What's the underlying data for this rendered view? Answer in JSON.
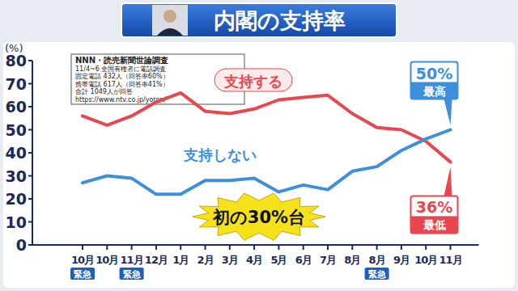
{
  "chart_data": {
    "type": "line",
    "title": "内閣の支持率",
    "y_label": "(%)",
    "categories": [
      "10月",
      "10月",
      "11月",
      "12月",
      "1月",
      "2月",
      "3月",
      "4月",
      "5月",
      "6月",
      "7月",
      "8月",
      "8月",
      "9月",
      "10月",
      "11月"
    ],
    "category_notes": [
      "緊急",
      null,
      "緊急",
      null,
      null,
      null,
      null,
      null,
      null,
      null,
      null,
      null,
      "緊急",
      null,
      null,
      null
    ],
    "source": [
      "NNN・読売新聞世論調査",
      "11/4~6 全国有権者に電話調査",
      "固定電話 432人（回答率60%）",
      "携帯電話 617人（回答率41%）",
      "合計 1049人が回答",
      "https://www.ntv.co.jp/yoron/"
    ],
    "series": [
      {
        "name": "支持する",
        "color": "#e8474f",
        "values": [
          56,
          52,
          56,
          62,
          66,
          58,
          57,
          59,
          63,
          64,
          65,
          57,
          51,
          50,
          45,
          36
        ],
        "value_labels": [
          null,
          null,
          null,
          null,
          null,
          null,
          null,
          null,
          null,
          null,
          null,
          null,
          null,
          null,
          null,
          "36%"
        ]
      },
      {
        "name": "支持しない",
        "color": "#3d8fde",
        "values": [
          27,
          30,
          29,
          22,
          22,
          28,
          28,
          29,
          23,
          26,
          24,
          32,
          34,
          41,
          46,
          50
        ],
        "value_labels": [
          null,
          null,
          null,
          null,
          null,
          null,
          null,
          null,
          null,
          null,
          null,
          null,
          null,
          null,
          null,
          "50%"
        ]
      }
    ],
    "annotations": [
      {
        "text": "最低",
        "series": 0,
        "point": 15
      },
      {
        "text": "最高",
        "series": 1,
        "point": 15
      },
      {
        "text": "初の30%台"
      }
    ],
    "ylim": [
      0,
      80
    ],
    "yticks": [
      0,
      10,
      20,
      30,
      40,
      50,
      60,
      70,
      80
    ],
    "grid": false
  }
}
